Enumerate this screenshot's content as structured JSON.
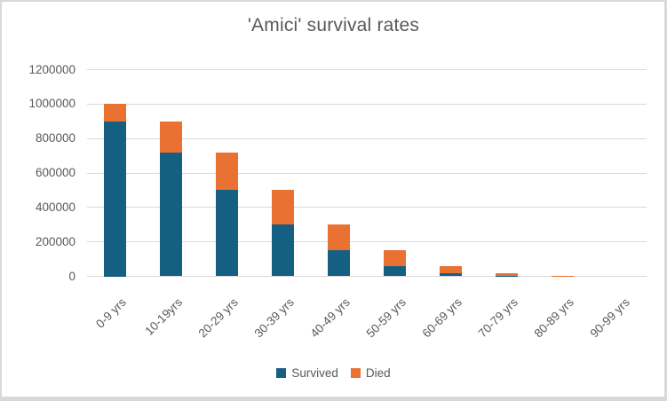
{
  "frame": {
    "background": "#FFFFFF",
    "border_color": "#D9D9D9"
  },
  "chart_data": {
    "type": "bar",
    "stacked": true,
    "title": "'Amici' survival rates",
    "categories": [
      "0-9 yrs",
      "10-19yrs",
      "20-29 yrs",
      "30-39 yrs",
      "40-49 yrs",
      "50-59 yrs",
      "60-69 yrs",
      "70-79 yrs",
      "80-89 yrs",
      "90-99 yrs"
    ],
    "series": [
      {
        "name": "Survived",
        "color": "#156082",
        "values": [
          900000,
          720000,
          504000,
          302400,
          151200,
          60480,
          18144,
          3629,
          363,
          0
        ]
      },
      {
        "name": "Died",
        "color": "#E97132",
        "values": [
          100000,
          180000,
          216000,
          201600,
          151200,
          90720,
          42336,
          14515,
          3266,
          363
        ]
      }
    ],
    "totals": [
      1000000,
      900000,
      720000,
      504000,
      302400,
      151200,
      60480,
      18144,
      3629,
      363
    ],
    "xlabel": "",
    "ylabel": "",
    "ylim": [
      0,
      1200000
    ],
    "ytick_step": 200000,
    "ytick_labels": [
      "0",
      "200000",
      "400000",
      "600000",
      "800000",
      "1000000",
      "1200000"
    ],
    "grid": true,
    "gridline_color": "#D9D9D9",
    "text_color": "#595959",
    "legend_position": "bottom"
  }
}
